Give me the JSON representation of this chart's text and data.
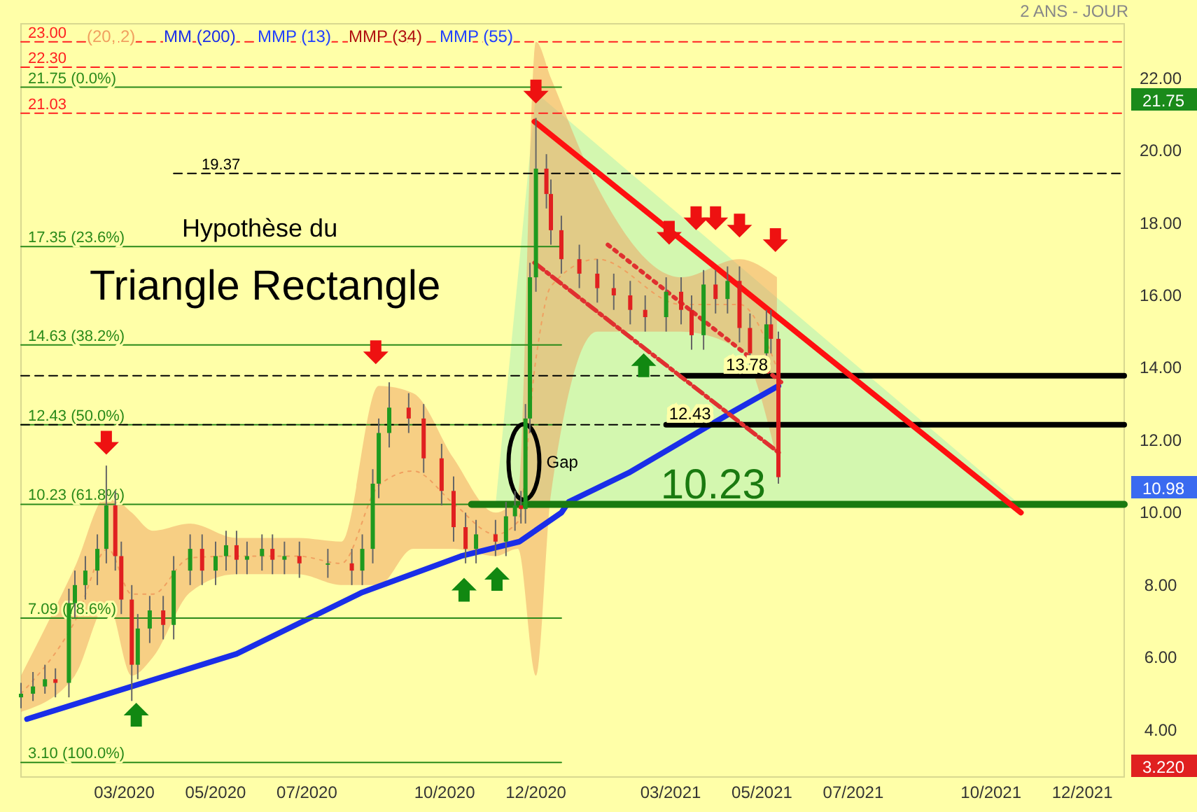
{
  "chart_data": {
    "type": "candlestick",
    "title": "Triangle Rectangle",
    "subtitle": "Hypothèse du",
    "legend": "top left",
    "grid": false,
    "xlim": [
      "2019-12-23",
      "2021-12-29"
    ],
    "ylim": [
      2.7,
      23.5
    ],
    "xticks": [
      {
        "value": "2020-03-01",
        "label": "03/2020"
      },
      {
        "value": "2020-05-01",
        "label": "05/2020"
      },
      {
        "value": "2020-07-01",
        "label": "07/2020"
      },
      {
        "value": "2020-10-01",
        "label": "10/2020"
      },
      {
        "value": "2020-12-01",
        "label": "12/2020"
      },
      {
        "value": "2021-03-01",
        "label": "03/2021"
      },
      {
        "value": "2021-05-01",
        "label": "05/2021"
      },
      {
        "value": "2021-07-01",
        "label": "07/2021"
      },
      {
        "value": "2021-10-01",
        "label": "10/2021"
      },
      {
        "value": "2021-12-01",
        "label": "12/2021"
      }
    ],
    "yticks": [
      {
        "value": 4,
        "label": "4.00"
      },
      {
        "value": 6,
        "label": "6.00"
      },
      {
        "value": 8,
        "label": "8.00"
      },
      {
        "value": 10,
        "label": "10.00"
      },
      {
        "value": 12,
        "label": "12.00"
      },
      {
        "value": 14,
        "label": "14.00"
      },
      {
        "value": 16,
        "label": "16.00"
      },
      {
        "value": 18,
        "label": "18.00"
      },
      {
        "value": 20,
        "label": "20.00"
      },
      {
        "value": 22,
        "label": "22.00"
      }
    ],
    "x": [
      "2019-12-23",
      "2019-12-31",
      "2020-01-08",
      "2020-01-15",
      "2020-01-24",
      "2020-01-28",
      "2020-02-04",
      "2020-02-12",
      "2020-02-18",
      "2020-02-24",
      "2020-02-28",
      "2020-03-06",
      "2020-03-10",
      "2020-03-18",
      "2020-03-27",
      "2020-04-03",
      "2020-04-14",
      "2020-04-22",
      "2020-05-01",
      "2020-05-08",
      "2020-05-15",
      "2020-05-22",
      "2020-06-01",
      "2020-06-08",
      "2020-06-16",
      "2020-06-26",
      "2020-07-15",
      "2020-07-31",
      "2020-08-07",
      "2020-08-14",
      "2020-08-18",
      "2020-08-25",
      "2020-09-07",
      "2020-09-17",
      "2020-09-29",
      "2020-10-07",
      "2020-10-15",
      "2020-10-22",
      "2020-11-04",
      "2020-11-11",
      "2020-11-17",
      "2020-11-21",
      "2020-11-24",
      "2020-11-27",
      "2020-12-01",
      "2020-12-08",
      "2020-12-11",
      "2020-12-18",
      "2020-12-30",
      "2021-01-11",
      "2021-01-22",
      "2021-02-02",
      "2021-02-12",
      "2021-02-26",
      "2021-03-08",
      "2021-03-15",
      "2021-03-23",
      "2021-03-31",
      "2021-04-08",
      "2021-04-16",
      "2021-04-23",
      "2021-05-04",
      "2021-05-07",
      "2021-05-12"
    ],
    "ohlc": [
      [
        4.9,
        5.3,
        4.6,
        5.0
      ],
      [
        5.0,
        5.6,
        4.8,
        5.2
      ],
      [
        5.2,
        5.8,
        5.0,
        5.4
      ],
      [
        5.4,
        5.7,
        4.9,
        5.3
      ],
      [
        5.3,
        7.9,
        4.9,
        7.5
      ],
      [
        7.5,
        8.4,
        7.1,
        8.0
      ],
      [
        8.0,
        8.8,
        7.6,
        8.4
      ],
      [
        8.4,
        9.4,
        8.0,
        9.0
      ],
      [
        9.0,
        11.3,
        8.6,
        10.2
      ],
      [
        10.2,
        10.6,
        8.4,
        8.8
      ],
      [
        8.8,
        9.2,
        7.2,
        7.6
      ],
      [
        7.6,
        8.0,
        4.8,
        5.8
      ],
      [
        5.8,
        7.2,
        5.4,
        6.8
      ],
      [
        6.8,
        7.7,
        6.4,
        7.3
      ],
      [
        7.3,
        7.7,
        6.5,
        6.9
      ],
      [
        6.9,
        8.8,
        6.5,
        8.4
      ],
      [
        8.4,
        9.4,
        8.0,
        9.0
      ],
      [
        9.0,
        9.4,
        8.0,
        8.4
      ],
      [
        8.4,
        9.2,
        8.0,
        8.8
      ],
      [
        8.8,
        9.5,
        8.4,
        9.1
      ],
      [
        9.1,
        9.5,
        8.3,
        8.7
      ],
      [
        8.7,
        9.2,
        8.3,
        8.8
      ],
      [
        8.8,
        9.4,
        8.4,
        9.0
      ],
      [
        9.0,
        9.4,
        8.3,
        8.7
      ],
      [
        8.7,
        9.2,
        8.3,
        8.8
      ],
      [
        8.8,
        9.2,
        8.2,
        8.6
      ],
      [
        8.6,
        9.0,
        8.2,
        8.6
      ],
      [
        8.6,
        9.0,
        8.0,
        8.4
      ],
      [
        8.4,
        9.4,
        8.0,
        9.0
      ],
      [
        9.0,
        11.2,
        8.6,
        10.8
      ],
      [
        10.8,
        12.6,
        10.4,
        12.2
      ],
      [
        12.2,
        13.6,
        11.8,
        12.9
      ],
      [
        12.9,
        13.3,
        12.2,
        12.6
      ],
      [
        12.6,
        13.0,
        11.1,
        11.5
      ],
      [
        11.5,
        11.9,
        10.2,
        10.6
      ],
      [
        10.6,
        11.0,
        9.2,
        9.6
      ],
      [
        9.6,
        10.0,
        8.6,
        9.0
      ],
      [
        9.0,
        9.8,
        8.6,
        9.4
      ],
      [
        9.4,
        9.8,
        8.8,
        9.2
      ],
      [
        9.2,
        10.3,
        8.8,
        9.9
      ],
      [
        9.9,
        10.6,
        9.5,
        10.2
      ],
      [
        10.2,
        10.6,
        9.7,
        10.1
      ],
      [
        10.1,
        13.0,
        9.7,
        12.6
      ],
      [
        12.6,
        16.9,
        12.2,
        16.5
      ],
      [
        16.5,
        20.9,
        16.1,
        19.5
      ],
      [
        19.5,
        19.9,
        18.4,
        18.8
      ],
      [
        18.8,
        19.2,
        17.4,
        17.8
      ],
      [
        17.8,
        18.2,
        16.6,
        17.0
      ],
      [
        17.0,
        17.4,
        16.2,
        16.6
      ],
      [
        16.6,
        17.0,
        15.8,
        16.2
      ],
      [
        16.2,
        16.6,
        15.6,
        16.0
      ],
      [
        16.0,
        16.4,
        15.2,
        15.6
      ],
      [
        15.6,
        16.0,
        15.0,
        15.4
      ],
      [
        15.4,
        16.5,
        15.0,
        16.1
      ],
      [
        16.1,
        16.5,
        15.2,
        15.6
      ],
      [
        15.6,
        16.0,
        14.5,
        14.9
      ],
      [
        14.9,
        16.7,
        14.5,
        16.3
      ],
      [
        16.3,
        16.7,
        15.5,
        15.9
      ],
      [
        15.9,
        16.8,
        15.5,
        16.4
      ],
      [
        16.4,
        16.8,
        14.7,
        15.1
      ],
      [
        15.1,
        15.5,
        14.0,
        14.4
      ],
      [
        14.4,
        15.6,
        14.0,
        15.2
      ],
      [
        15.2,
        15.6,
        14.4,
        14.8
      ],
      [
        14.8,
        15.0,
        10.8,
        10.98
      ]
    ],
    "series": [
      {
        "name": "(20, 2)",
        "type": "line",
        "color": "#f0a060",
        "line_style": "dotted",
        "x": [
          "2019-12-23",
          "2020-01-28",
          "2020-02-19",
          "2020-03-06",
          "2020-03-20",
          "2020-04-14",
          "2020-05-15",
          "2020-06-25",
          "2020-07-24",
          "2020-08-18",
          "2020-09-10",
          "2020-10-07",
          "2020-11-04",
          "2020-11-19",
          "2020-12-01",
          "2020-12-11",
          "2021-01-11",
          "2021-03-08",
          "2021-04-16",
          "2021-05-11"
        ],
        "lower": [
          4.5,
          5.5,
          7.5,
          5.5,
          6.0,
          7.8,
          8.3,
          8.3,
          8.0,
          8.0,
          9.0,
          9.0,
          8.8,
          9.0,
          5.5,
          10.5,
          15.0,
          15.0,
          14.5,
          11.5
        ],
        "upper": [
          5.5,
          8.5,
          10.5,
          10.0,
          9.5,
          9.7,
          9.3,
          9.3,
          9.2,
          13.5,
          13.3,
          11.5,
          10.0,
          10.5,
          23.0,
          22.0,
          19.0,
          16.5,
          17.0,
          16.5
        ],
        "values": [
          5.0,
          7.0,
          9.0,
          7.75,
          7.75,
          8.75,
          8.8,
          8.8,
          8.6,
          10.75,
          11.15,
          10.25,
          9.4,
          9.75,
          14.25,
          16.25,
          17.0,
          15.75,
          15.75,
          14.0
        ]
      },
      {
        "name": "MM (200)",
        "type": "line",
        "color": "#1a2ee8",
        "line_style": "solid",
        "x": [
          "2019-12-27",
          "2020-03-06",
          "2020-05-15",
          "2020-08-07",
          "2020-10-12",
          "2020-11-20",
          "2020-12-18",
          "2020-12-23",
          "2021-02-01",
          "2021-04-12",
          "2021-05-12"
        ],
        "values": [
          4.3,
          5.2,
          6.1,
          7.8,
          8.8,
          9.2,
          10.0,
          10.3,
          11.1,
          12.8,
          13.5
        ]
      },
      {
        "name": "21.75  (0.0%)",
        "type": "line",
        "color": "#2a8a1a",
        "line_style": "solid",
        "x": [
          "2019-12-23",
          "2020-12-18"
        ],
        "values": [
          21.75,
          21.75
        ]
      },
      {
        "name": "17.35  (23.6%)",
        "type": "line",
        "color": "#2a8a1a",
        "line_style": "solid",
        "x": [
          "2019-12-23",
          "2020-12-18"
        ],
        "values": [
          17.35,
          17.35
        ]
      },
      {
        "name": "14.63  (38.2%)",
        "type": "line",
        "color": "#2a8a1a",
        "line_style": "solid",
        "x": [
          "2019-12-23",
          "2020-12-18"
        ],
        "values": [
          14.63,
          14.63
        ]
      },
      {
        "name": "12.43  (50.0%)",
        "type": "line",
        "color": "#2a8a1a",
        "line_style": "solid",
        "x": [
          "2019-12-23",
          "2020-12-18"
        ],
        "values": [
          12.43,
          12.43
        ]
      },
      {
        "name": "10.23  (61.8%)",
        "type": "line",
        "color": "#2a8a1a",
        "line_style": "solid",
        "x": [
          "2019-12-23",
          "2020-12-18"
        ],
        "values": [
          10.23,
          10.23
        ]
      },
      {
        "name": "7.09  (78.6%)",
        "type": "line",
        "color": "#2a8a1a",
        "line_style": "solid",
        "x": [
          "2019-12-23",
          "2020-12-18"
        ],
        "values": [
          7.09,
          7.09
        ]
      },
      {
        "name": "3.10  (100.0%)",
        "type": "line",
        "color": "#2a8a1a",
        "line_style": "solid",
        "x": [
          "2019-12-23",
          "2020-12-18"
        ],
        "values": [
          3.1,
          3.1
        ]
      },
      {
        "name": "23.00",
        "type": "line",
        "color": "#ff2020",
        "line_style": "dashed",
        "x": [
          "2019-12-23",
          "2021-12-29"
        ],
        "values": [
          23.0,
          23.0
        ]
      },
      {
        "name": "22.30",
        "type": "line",
        "color": "#ff2020",
        "line_style": "dashed",
        "x": [
          "2019-12-23",
          "2021-12-29"
        ],
        "values": [
          22.3,
          22.3
        ]
      },
      {
        "name": "21.03",
        "type": "line",
        "color": "#ff2020",
        "line_style": "dashed",
        "x": [
          "2019-12-23",
          "2021-12-29"
        ],
        "values": [
          21.03,
          21.03
        ]
      },
      {
        "name": "19.37",
        "type": "line",
        "color": "#000000",
        "line_style": "dashed",
        "x": [
          "2020-04-03",
          "2021-12-29"
        ],
        "values": [
          19.37,
          19.37
        ]
      },
      {
        "type": "line",
        "color": "#000000",
        "line_style": "dashed",
        "x": [
          "2019-12-23",
          "2021-03-08"
        ],
        "values": [
          13.78,
          13.78
        ]
      },
      {
        "type": "line",
        "color": "#000000",
        "line_style": "dashed",
        "x": [
          "2019-12-23",
          "2021-02-26"
        ],
        "values": [
          12.43,
          12.43
        ]
      },
      {
        "name": "13.78",
        "type": "line",
        "color": "#000000",
        "line_style": "solid",
        "x": [
          "2021-03-08",
          "2021-12-29"
        ],
        "values": [
          13.78,
          13.78
        ]
      },
      {
        "name": "12.43",
        "type": "line",
        "color": "#000000",
        "line_style": "solid",
        "x": [
          "2021-02-26",
          "2021-12-29"
        ],
        "values": [
          12.43,
          12.43
        ]
      },
      {
        "name": "10.23",
        "type": "line",
        "color": "#1a7a10",
        "line_style": "solid",
        "x": [
          "2020-10-19",
          "2021-12-29"
        ],
        "values": [
          10.23,
          10.23
        ]
      },
      {
        "type": "line",
        "color": "#ff1010",
        "line_style": "solid",
        "x": [
          "2020-11-30",
          "2021-10-21"
        ],
        "values": [
          20.8,
          10.0
        ]
      },
      {
        "type": "line",
        "color": "#e03030",
        "line_style": "dotted",
        "x": [
          "2021-01-18",
          "2021-05-14"
        ],
        "values": [
          17.4,
          13.6
        ]
      },
      {
        "type": "line",
        "color": "#e03030",
        "line_style": "dashed",
        "x": [
          "2020-11-30",
          "2021-05-14"
        ],
        "values": [
          16.9,
          11.6
        ]
      }
    ],
    "annotations": [
      "MMP (13)",
      "MMP (34)",
      "MMP (55)",
      "2 ANS - JOUR",
      "21.75",
      "10.98",
      "3.220",
      "Gap"
    ]
  }
}
